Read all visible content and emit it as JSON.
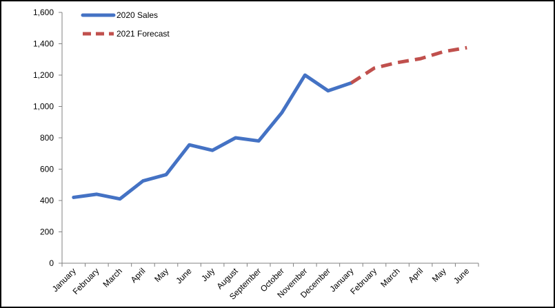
{
  "chart_data": {
    "type": "line",
    "title": "",
    "xlabel": "",
    "ylabel": "",
    "ylim": [
      0,
      1600
    ],
    "y_ticks": [
      0,
      200,
      400,
      600,
      800,
      1000,
      1200,
      1400,
      1600
    ],
    "y_tick_labels": [
      "0",
      "200",
      "400",
      "600",
      "800",
      "1,000",
      "1,200",
      "1,400",
      "1,600"
    ],
    "categories": [
      "January",
      "February",
      "March",
      "April",
      "May",
      "June",
      "July",
      "August",
      "September",
      "October",
      "November",
      "December",
      "January",
      "February",
      "March",
      "April",
      "May",
      "June"
    ],
    "grid": false,
    "legend_position": "top-left",
    "series": [
      {
        "name": "2020 Sales",
        "color": "#4472C4",
        "style": "solid",
        "values": [
          420,
          440,
          410,
          525,
          565,
          755,
          720,
          800,
          780,
          960,
          1200,
          1100,
          1150,
          null,
          null,
          null,
          null,
          null
        ]
      },
      {
        "name": "2021 Forecast",
        "color": "#C0504D",
        "style": "dashed",
        "values": [
          null,
          null,
          null,
          null,
          null,
          null,
          null,
          null,
          null,
          null,
          null,
          null,
          1150,
          1245,
          1280,
          1305,
          1350,
          1375
        ]
      }
    ]
  }
}
